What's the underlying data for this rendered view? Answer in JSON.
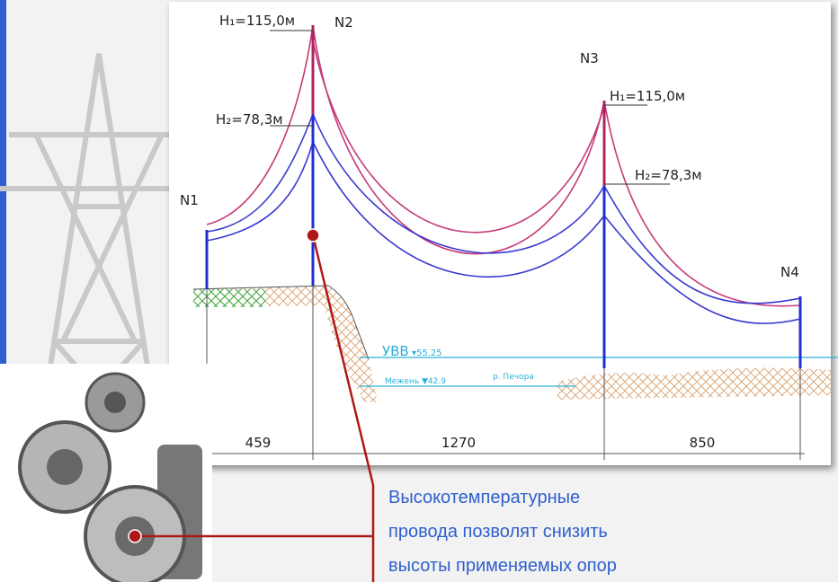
{
  "towers": [
    {
      "label": "N1"
    },
    {
      "label": "N2",
      "h1": "H₁=115,0м",
      "h2": "H₂=78,3м"
    },
    {
      "label": "N3",
      "h1": "H₁=115,0м",
      "h2": "H₂=78,3м"
    },
    {
      "label": "N4"
    }
  ],
  "water": {
    "high_mark": "УВВ",
    "high_level": "▾55.25",
    "low_level": "Межень ▼42.9",
    "river": "р. Печора"
  },
  "spans": [
    459,
    1270,
    850
  ],
  "caption": [
    "Высокотемпературные",
    "провода позволят снизить",
    "высоты применяемых опор"
  ]
}
